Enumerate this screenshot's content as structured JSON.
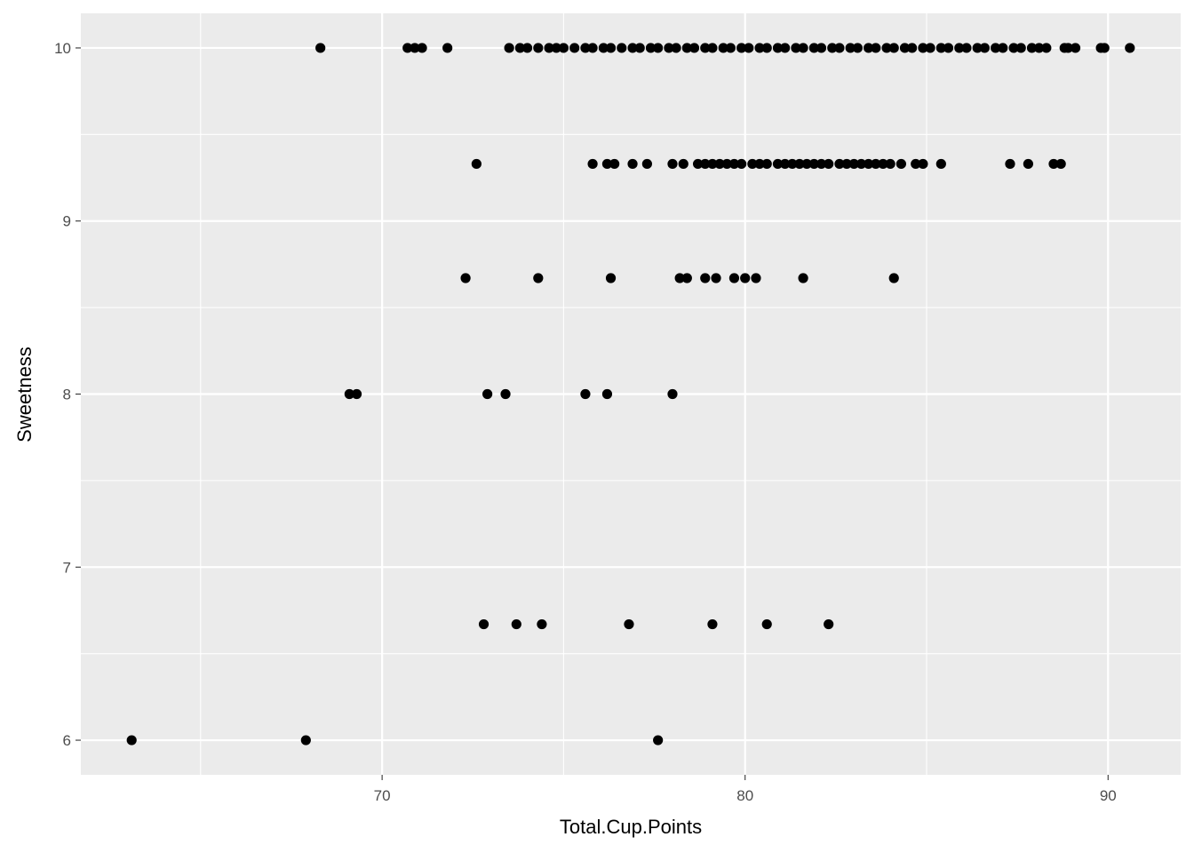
{
  "chart_data": {
    "type": "scatter",
    "title": "",
    "xlabel": "Total.Cup.Points",
    "ylabel": "Sweetness",
    "xlim": [
      61.7,
      92
    ],
    "ylim": [
      5.8,
      10.2
    ],
    "x_ticks": [
      70,
      80,
      90
    ],
    "x_tick_labels": [
      "70",
      "80",
      "90"
    ],
    "y_ticks": [
      6,
      7,
      8,
      9,
      10
    ],
    "y_tick_labels": [
      "6",
      "7",
      "8",
      "9",
      "10"
    ],
    "grid": true,
    "legend": "none",
    "colors": {
      "panel": "#ebebeb",
      "grid": "#ffffff",
      "point": "#000000"
    },
    "series": [
      {
        "points": [
          [
            63.1,
            6
          ],
          [
            67.9,
            6
          ],
          [
            77.6,
            6
          ],
          [
            72.8,
            6.67
          ],
          [
            73.7,
            6.67
          ],
          [
            74.4,
            6.67
          ],
          [
            76.8,
            6.67
          ],
          [
            79.1,
            6.67
          ],
          [
            80.6,
            6.67
          ],
          [
            82.3,
            6.67
          ],
          [
            69.1,
            8
          ],
          [
            69.3,
            8
          ],
          [
            72.9,
            8
          ],
          [
            73.4,
            8
          ],
          [
            75.6,
            8
          ],
          [
            76.2,
            8
          ],
          [
            78.0,
            8
          ],
          [
            72.3,
            8.67
          ],
          [
            74.3,
            8.67
          ],
          [
            76.3,
            8.67
          ],
          [
            78.2,
            8.67
          ],
          [
            78.4,
            8.67
          ],
          [
            78.9,
            8.67
          ],
          [
            79.2,
            8.67
          ],
          [
            79.7,
            8.67
          ],
          [
            80.0,
            8.67
          ],
          [
            80.3,
            8.67
          ],
          [
            81.6,
            8.67
          ],
          [
            84.1,
            8.67
          ],
          [
            72.6,
            9.33
          ],
          [
            75.8,
            9.33
          ],
          [
            76.2,
            9.33
          ],
          [
            76.4,
            9.33
          ],
          [
            76.9,
            9.33
          ],
          [
            77.3,
            9.33
          ],
          [
            78.0,
            9.33
          ],
          [
            78.3,
            9.33
          ],
          [
            78.7,
            9.33
          ],
          [
            78.9,
            9.33
          ],
          [
            79.1,
            9.33
          ],
          [
            79.3,
            9.33
          ],
          [
            79.5,
            9.33
          ],
          [
            79.7,
            9.33
          ],
          [
            79.9,
            9.33
          ],
          [
            80.2,
            9.33
          ],
          [
            80.4,
            9.33
          ],
          [
            80.6,
            9.33
          ],
          [
            80.9,
            9.33
          ],
          [
            81.1,
            9.33
          ],
          [
            81.3,
            9.33
          ],
          [
            81.5,
            9.33
          ],
          [
            81.7,
            9.33
          ],
          [
            81.9,
            9.33
          ],
          [
            82.1,
            9.33
          ],
          [
            82.3,
            9.33
          ],
          [
            82.6,
            9.33
          ],
          [
            82.8,
            9.33
          ],
          [
            83.0,
            9.33
          ],
          [
            83.2,
            9.33
          ],
          [
            83.4,
            9.33
          ],
          [
            83.6,
            9.33
          ],
          [
            83.8,
            9.33
          ],
          [
            84.0,
            9.33
          ],
          [
            84.3,
            9.33
          ],
          [
            84.7,
            9.33
          ],
          [
            84.9,
            9.33
          ],
          [
            85.4,
            9.33
          ],
          [
            87.3,
            9.33
          ],
          [
            87.8,
            9.33
          ],
          [
            88.5,
            9.33
          ],
          [
            88.7,
            9.33
          ],
          [
            68.3,
            10
          ],
          [
            70.7,
            10
          ],
          [
            70.9,
            10
          ],
          [
            71.1,
            10
          ],
          [
            71.8,
            10
          ],
          [
            73.5,
            10
          ],
          [
            73.8,
            10
          ],
          [
            74.0,
            10
          ],
          [
            74.3,
            10
          ],
          [
            74.6,
            10
          ],
          [
            74.8,
            10
          ],
          [
            75.0,
            10
          ],
          [
            75.3,
            10
          ],
          [
            75.6,
            10
          ],
          [
            75.8,
            10
          ],
          [
            76.1,
            10
          ],
          [
            76.3,
            10
          ],
          [
            76.6,
            10
          ],
          [
            76.9,
            10
          ],
          [
            77.1,
            10
          ],
          [
            77.4,
            10
          ],
          [
            77.6,
            10
          ],
          [
            77.9,
            10
          ],
          [
            78.1,
            10
          ],
          [
            78.4,
            10
          ],
          [
            78.6,
            10
          ],
          [
            78.9,
            10
          ],
          [
            79.1,
            10
          ],
          [
            79.4,
            10
          ],
          [
            79.6,
            10
          ],
          [
            79.9,
            10
          ],
          [
            80.1,
            10
          ],
          [
            80.4,
            10
          ],
          [
            80.6,
            10
          ],
          [
            80.9,
            10
          ],
          [
            81.1,
            10
          ],
          [
            81.4,
            10
          ],
          [
            81.6,
            10
          ],
          [
            81.9,
            10
          ],
          [
            82.1,
            10
          ],
          [
            82.4,
            10
          ],
          [
            82.6,
            10
          ],
          [
            82.9,
            10
          ],
          [
            83.1,
            10
          ],
          [
            83.4,
            10
          ],
          [
            83.6,
            10
          ],
          [
            83.9,
            10
          ],
          [
            84.1,
            10
          ],
          [
            84.4,
            10
          ],
          [
            84.6,
            10
          ],
          [
            84.9,
            10
          ],
          [
            85.1,
            10
          ],
          [
            85.4,
            10
          ],
          [
            85.6,
            10
          ],
          [
            85.9,
            10
          ],
          [
            86.1,
            10
          ],
          [
            86.4,
            10
          ],
          [
            86.6,
            10
          ],
          [
            86.9,
            10
          ],
          [
            87.1,
            10
          ],
          [
            87.4,
            10
          ],
          [
            87.6,
            10
          ],
          [
            87.9,
            10
          ],
          [
            88.1,
            10
          ],
          [
            88.3,
            10
          ],
          [
            88.8,
            10
          ],
          [
            88.9,
            10
          ],
          [
            89.1,
            10
          ],
          [
            89.8,
            10
          ],
          [
            89.9,
            10
          ],
          [
            90.6,
            10
          ]
        ]
      }
    ]
  }
}
